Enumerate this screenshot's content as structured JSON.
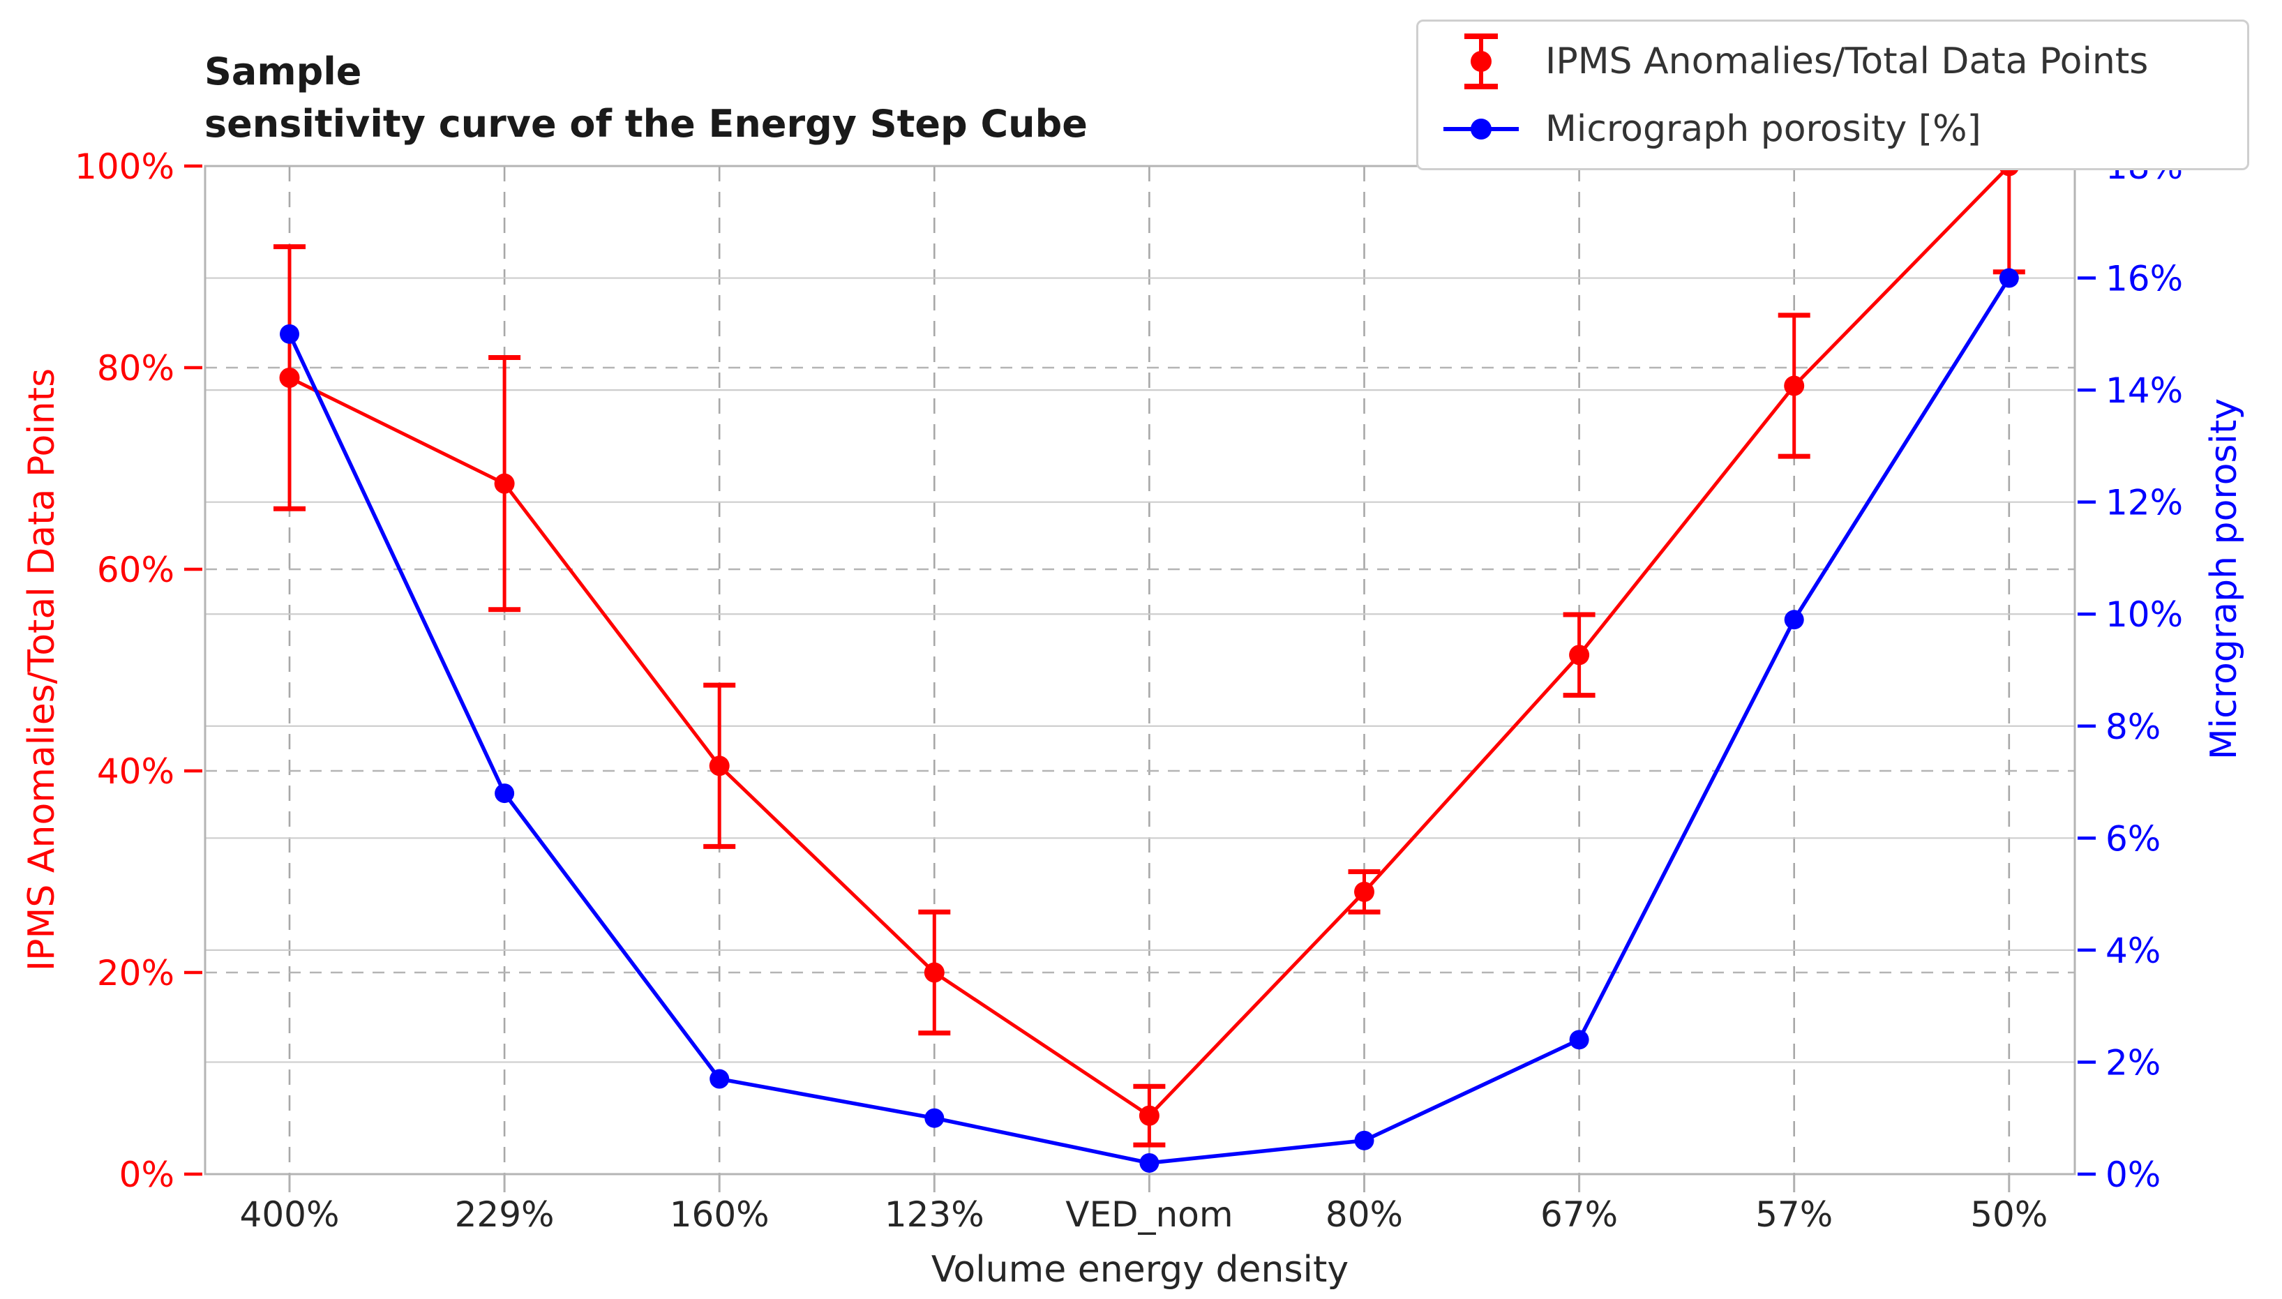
{
  "title": {
    "line1": "Sample",
    "line2": "sensitivity curve of the Energy Step Cube"
  },
  "legend": [
    {
      "label": "IPMS Anomalies/Total Data Points",
      "color": "#ff0000",
      "marker": "errorbar-dot"
    },
    {
      "label": "Micrograph porosity [%]",
      "color": "#0000ff",
      "marker": "line-dot"
    }
  ],
  "chart_data": {
    "type": "line",
    "title": "Sample\nsensitivity curve of the Energy Step Cube",
    "xlabel": "Volume energy density",
    "categories": [
      "400%",
      "229%",
      "160%",
      "123%",
      "VED_nom",
      "80%",
      "67%",
      "57%",
      "50%"
    ],
    "series": [
      {
        "name": "IPMS Anomalies/Total Data Points",
        "axis": "left",
        "color": "#ff0000",
        "marker": "circle",
        "linestyle": "solid",
        "values": [
          79,
          68.5,
          40.5,
          20,
          5.8,
          28,
          51.5,
          78.2,
          100
        ],
        "yerr": [
          13,
          12.5,
          8,
          6,
          2.9,
          2,
          4,
          7,
          10.5
        ]
      },
      {
        "name": "Micrograph porosity [%]",
        "axis": "right",
        "color": "#0000ff",
        "marker": "circle",
        "linestyle": "solid",
        "values": [
          15.0,
          6.8,
          1.7,
          1.0,
          0.2,
          0.6,
          2.4,
          9.9,
          16.0
        ]
      }
    ],
    "y_left": {
      "label": "IPMS Anomalies/Total Data Points",
      "color": "#ff0000",
      "range": [
        0,
        100
      ],
      "tick_values": [
        0,
        20,
        40,
        60,
        80,
        100
      ],
      "tick_labels": [
        "0%",
        "20%",
        "40%",
        "60%",
        "80%",
        "100%"
      ],
      "gridstyle": "dashed"
    },
    "y_right": {
      "label": "Micrograph porosity",
      "color": "#0000ff",
      "range": [
        0,
        18
      ],
      "tick_values": [
        0,
        2,
        4,
        6,
        8,
        10,
        12,
        14,
        16,
        18
      ],
      "tick_labels": [
        "0%",
        "2%",
        "4%",
        "6%",
        "8%",
        "10%",
        "12%",
        "14%",
        "16%",
        "18%"
      ],
      "gridstyle": "solid"
    },
    "x_grid": "dashed",
    "grid": true,
    "legend_position": "upper right",
    "background": "#ffffff"
  }
}
